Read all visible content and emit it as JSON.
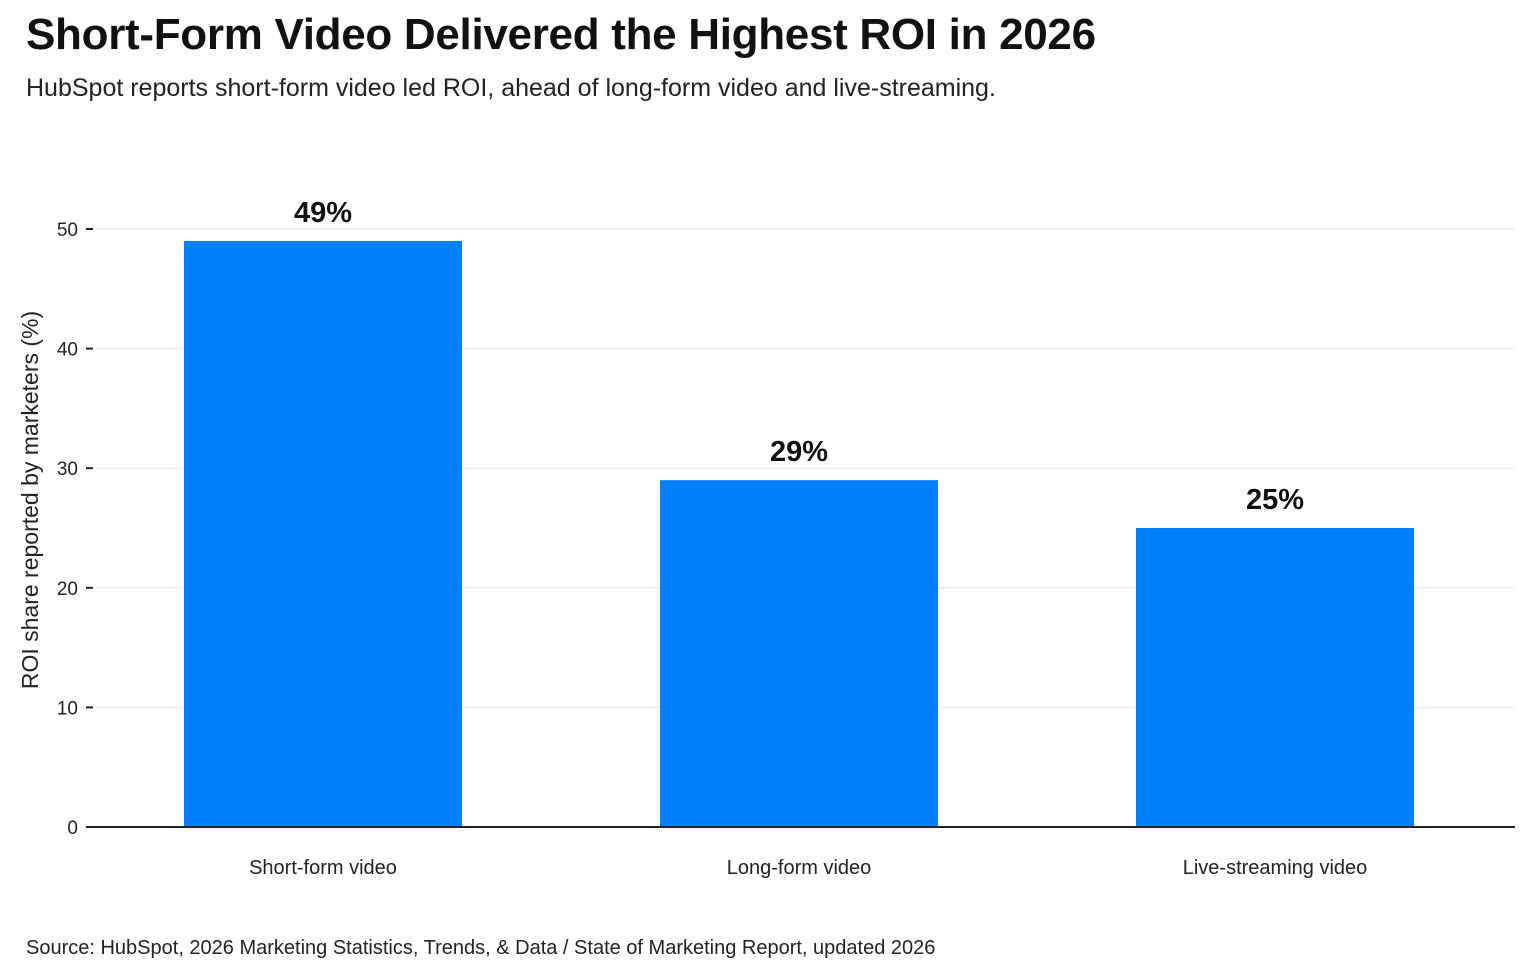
{
  "title": "Short-Form Video Delivered the Highest ROI in 2026",
  "subtitle": "HubSpot reports short-form video led ROI, ahead of long-form video and live-streaming.",
  "source": "Source: HubSpot, 2026 Marketing Statistics, Trends, & Data / State of Marketing Report, updated 2026",
  "chart_data": {
    "type": "bar",
    "title": "Short-Form Video Delivered the Highest ROI in 2026",
    "xlabel": "",
    "ylabel": "ROI share reported by marketers (%)",
    "categories": [
      "Short-form video",
      "Long-form video",
      "Live-streaming video"
    ],
    "values": [
      49,
      29,
      25
    ],
    "data_labels": [
      "49%",
      "29%",
      "25%"
    ],
    "ylim": [
      0,
      50
    ],
    "yticks": [
      0,
      10,
      20,
      30,
      40,
      50
    ],
    "grid": "horizontal",
    "legend": "none",
    "bar_color": "#007FFF"
  }
}
